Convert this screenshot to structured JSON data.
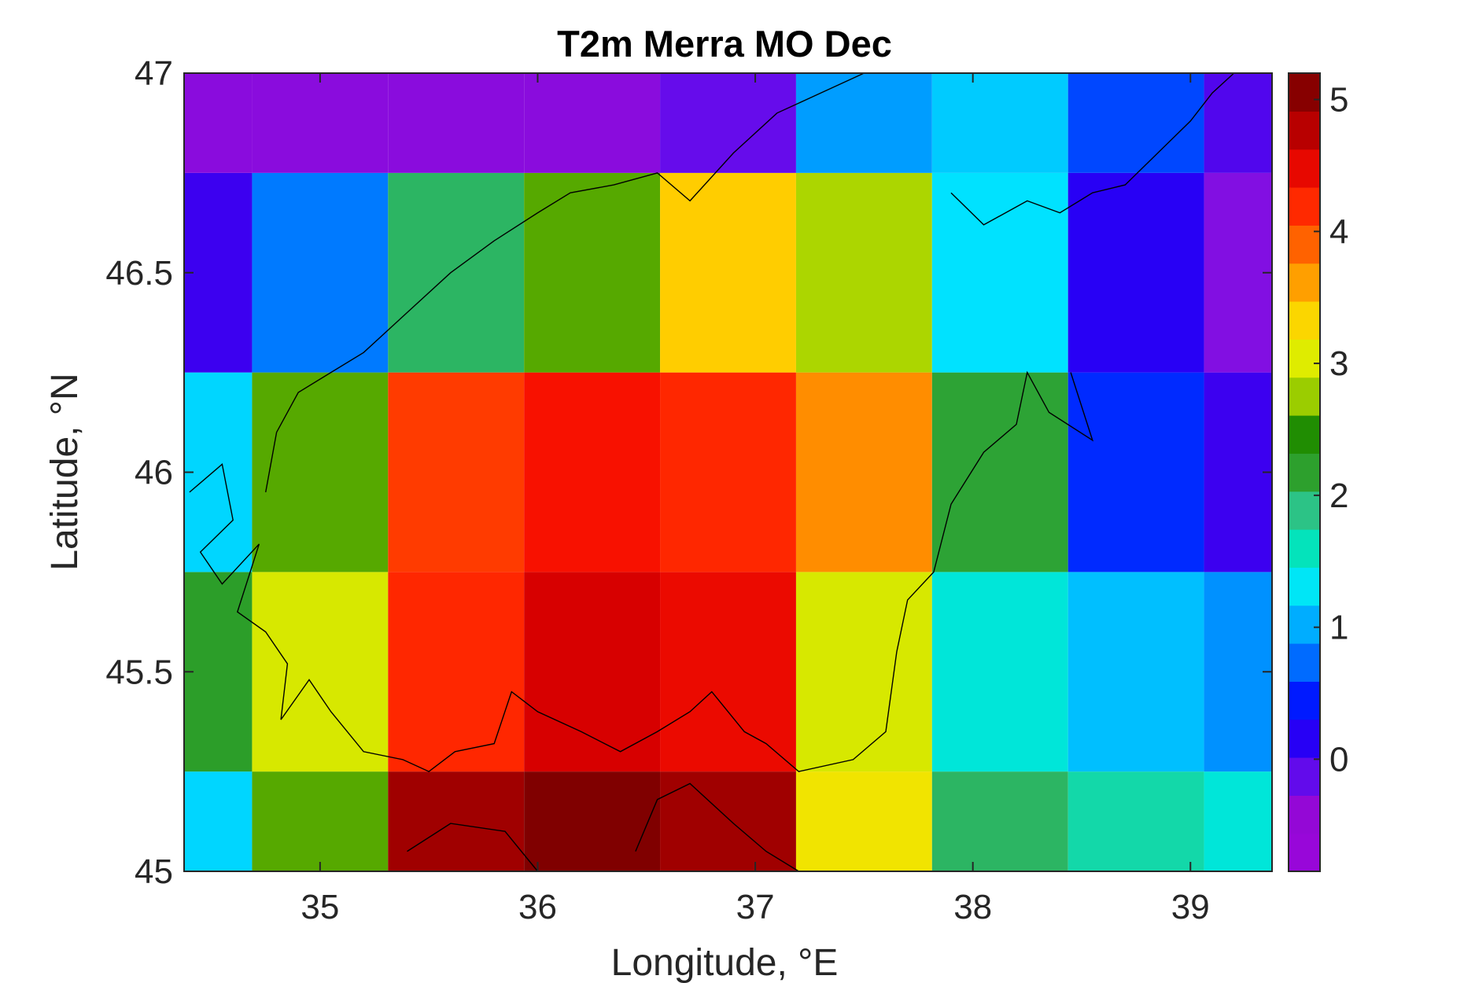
{
  "chart_data": {
    "type": "heatmap",
    "title": "T2m Merra MO Dec",
    "xlabel": "Longitude, °E",
    "ylabel": "Latitude, °N",
    "xlim": [
      34.375,
      39.375
    ],
    "ylim": [
      45,
      47
    ],
    "x_centers": [
      34.375,
      35.0,
      35.625,
      36.25,
      36.875,
      37.5,
      38.125,
      38.75,
      39.375
    ],
    "y_centers": [
      45.0,
      45.5,
      46.0,
      46.5,
      47.0
    ],
    "values": [
      [
        1.2,
        2.6,
        4.9,
        5.1,
        4.9,
        3.2,
        2.0,
        1.7,
        1.45
      ],
      [
        2.2,
        3.0,
        4.2,
        4.6,
        4.45,
        3.0,
        1.45,
        1.1,
        0.9
      ],
      [
        1.2,
        2.6,
        4.1,
        4.35,
        4.2,
        3.7,
        2.15,
        0.5,
        0.05
      ],
      [
        0.05,
        0.8,
        2.0,
        2.6,
        3.4,
        2.8,
        1.25,
        0.15,
        -0.3
      ],
      [
        -0.35,
        -0.35,
        -0.35,
        -0.35,
        -0.15,
        0.95,
        1.15,
        0.6,
        -0.05
      ]
    ],
    "xticks": [
      35,
      36,
      37,
      38,
      39
    ],
    "xtick_labels": [
      "35",
      "36",
      "37",
      "38",
      "39"
    ],
    "yticks": [
      45,
      45.5,
      46,
      46.5,
      47
    ],
    "ytick_labels": [
      "45",
      "45.5",
      "46",
      "46.5",
      "47"
    ],
    "colorbar": {
      "min": -0.85,
      "max": 5.2,
      "ticks": [
        0,
        1,
        2,
        3,
        4,
        5
      ],
      "tick_labels": [
        "0",
        "1",
        "2",
        "3",
        "4",
        "5"
      ],
      "colormap": [
        "#8a0de8",
        "#a800c8",
        "#7a12e8",
        "#3a00f0",
        "#0000ff",
        "#005aff",
        "#00a0ff",
        "#00e6ff",
        "#00e6c0",
        "#2cc58a",
        "#2da02d",
        "#1f8c00",
        "#a8d400",
        "#e8f000",
        "#ffd000",
        "#ff9000",
        "#ff5000",
        "#ff1500",
        "#d80000",
        "#a00000",
        "#700000"
      ]
    },
    "grid": false,
    "overlay": "coastline",
    "coastline": [
      [
        [
          34.4,
          45.95
        ],
        [
          34.55,
          46.02
        ],
        [
          34.6,
          45.88
        ],
        [
          34.45,
          45.8
        ],
        [
          34.55,
          45.72
        ],
        [
          34.72,
          45.82
        ],
        [
          34.62,
          45.65
        ],
        [
          34.75,
          45.6
        ],
        [
          34.85,
          45.52
        ],
        [
          34.82,
          45.38
        ],
        [
          34.95,
          45.48
        ],
        [
          35.05,
          45.4
        ],
        [
          35.2,
          45.3
        ],
        [
          35.38,
          45.28
        ],
        [
          35.5,
          45.25
        ],
        [
          35.62,
          45.3
        ],
        [
          35.8,
          45.32
        ],
        [
          35.88,
          45.45
        ],
        [
          36.0,
          45.4
        ],
        [
          36.2,
          45.35
        ],
        [
          36.38,
          45.3
        ],
        [
          36.55,
          45.35
        ],
        [
          36.7,
          45.4
        ],
        [
          36.8,
          45.45
        ],
        [
          36.95,
          45.35
        ],
        [
          37.05,
          45.32
        ],
        [
          37.2,
          45.25
        ],
        [
          37.45,
          45.28
        ],
        [
          37.6,
          45.35
        ],
        [
          37.65,
          45.55
        ],
        [
          37.7,
          45.68
        ],
        [
          37.82,
          45.75
        ],
        [
          37.9,
          45.92
        ],
        [
          38.05,
          46.05
        ],
        [
          38.2,
          46.12
        ],
        [
          38.25,
          46.25
        ],
        [
          38.35,
          46.15
        ],
        [
          38.55,
          46.08
        ],
        [
          38.45,
          46.25
        ]
      ],
      [
        [
          34.75,
          45.95
        ],
        [
          34.8,
          46.1
        ],
        [
          34.9,
          46.2
        ],
        [
          35.05,
          46.25
        ],
        [
          35.2,
          46.3
        ],
        [
          35.4,
          46.4
        ],
        [
          35.6,
          46.5
        ],
        [
          35.8,
          46.58
        ],
        [
          36.0,
          46.65
        ],
        [
          36.15,
          46.7
        ],
        [
          36.35,
          46.72
        ],
        [
          36.55,
          46.75
        ],
        [
          36.7,
          46.68
        ],
        [
          36.9,
          46.8
        ],
        [
          37.1,
          46.9
        ],
        [
          37.3,
          46.95
        ],
        [
          37.5,
          47.0
        ]
      ],
      [
        [
          37.9,
          46.7
        ],
        [
          38.05,
          46.62
        ],
        [
          38.25,
          46.68
        ],
        [
          38.4,
          46.65
        ],
        [
          38.55,
          46.7
        ],
        [
          38.7,
          46.72
        ],
        [
          38.85,
          46.8
        ],
        [
          39.0,
          46.88
        ],
        [
          39.1,
          46.95
        ],
        [
          39.2,
          47.0
        ]
      ],
      [
        [
          35.4,
          45.05
        ],
        [
          35.6,
          45.12
        ],
        [
          35.85,
          45.1
        ],
        [
          36.0,
          45.0
        ]
      ],
      [
        [
          36.45,
          45.05
        ],
        [
          36.55,
          45.18
        ],
        [
          36.7,
          45.22
        ],
        [
          36.9,
          45.12
        ],
        [
          37.05,
          45.05
        ],
        [
          37.2,
          45.0
        ]
      ]
    ]
  }
}
